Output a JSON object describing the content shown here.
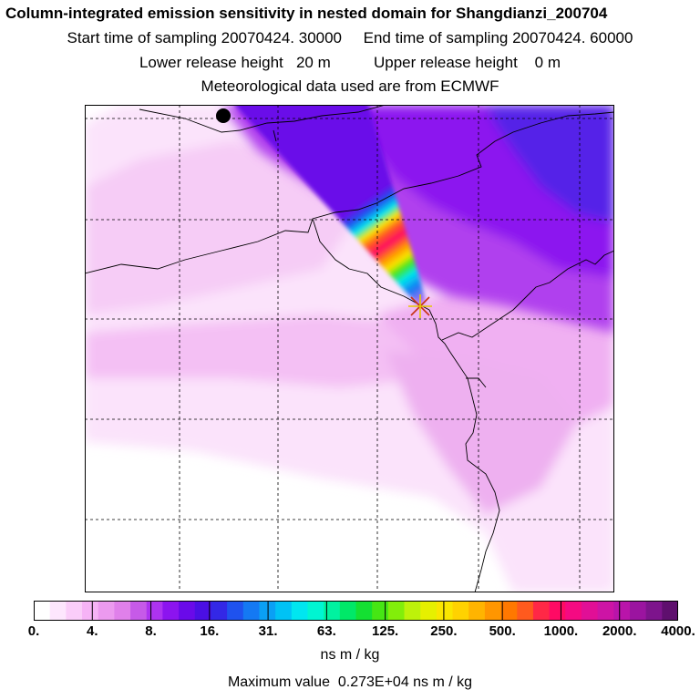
{
  "header": {
    "title": "Column-integrated emission sensitivity in nested domain for Shangdianzi_200704",
    "line2": "Start time of sampling 20070424. 30000     End time of sampling 20070424. 60000",
    "line3": "Lower release height   20 m          Upper release height    0 m",
    "line4": "Meteorological data used are from ECMWF"
  },
  "map": {
    "receptor_marker": "cross-marker",
    "source_marker": "black-dot-marker"
  },
  "colorbar": {
    "ticks": [
      "0.",
      "4.",
      "8.",
      "16.",
      "31.",
      "63.",
      "125.",
      "250.",
      "500.",
      "1000.",
      "2000.",
      "4000."
    ],
    "colors": [
      "#ffffff",
      "#fde6fd",
      "#facdf9",
      "#f6b3f6",
      "#ec9aef",
      "#e080ea",
      "#c65ae8",
      "#ad33f0",
      "#8c14ef",
      "#6a0ae9",
      "#4b0fe4",
      "#3328e6",
      "#1f52ee",
      "#1479f3",
      "#0aa0f5",
      "#00c2f5",
      "#00e6f0",
      "#00f5d2",
      "#00f2a0",
      "#00e868",
      "#14e032",
      "#46e614",
      "#82ee0a",
      "#bdf20a",
      "#e6f000",
      "#fae600",
      "#ffd200",
      "#ffb400",
      "#ff9600",
      "#ff7800",
      "#ff5a1e",
      "#ff2846",
      "#ff0a64",
      "#f50a82",
      "#e10f96",
      "#cd14a5",
      "#b914aa",
      "#9b14a0",
      "#7d148c",
      "#5f0f6e"
    ],
    "units": "ns m / kg"
  },
  "footer": {
    "max_value": "Maximum value  0.273E+04 ns m / kg"
  }
}
